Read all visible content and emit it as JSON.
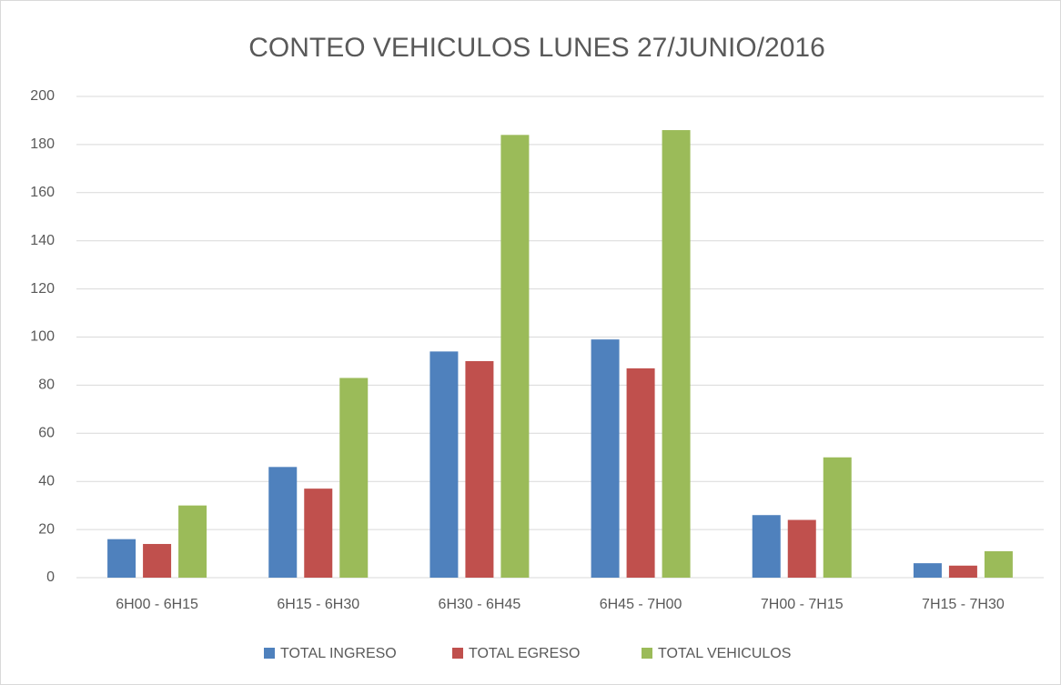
{
  "chart_data": {
    "type": "bar",
    "title": "CONTEO VEHICULOS LUNES 27/JUNIO/2016",
    "categories": [
      "6H00 - 6H15",
      "6H15 - 6H30",
      "6H30 - 6H45",
      "6H45 - 7H00",
      "7H00 - 7H15",
      "7H15 - 7H30"
    ],
    "series": [
      {
        "name": "TOTAL INGRESO",
        "color": "#4f81bd",
        "values": [
          16,
          46,
          94,
          99,
          26,
          6
        ]
      },
      {
        "name": "TOTAL EGRESO",
        "color": "#c0504d",
        "values": [
          14,
          37,
          90,
          87,
          24,
          5
        ]
      },
      {
        "name": "TOTAL VEHICULOS",
        "color": "#9bbb59",
        "values": [
          30,
          83,
          184,
          186,
          50,
          11
        ]
      }
    ],
    "ylim": [
      0,
      200
    ],
    "yticks": [
      0,
      20,
      40,
      60,
      80,
      100,
      120,
      140,
      160,
      180,
      200
    ],
    "grid": true,
    "legend": "bottom"
  }
}
